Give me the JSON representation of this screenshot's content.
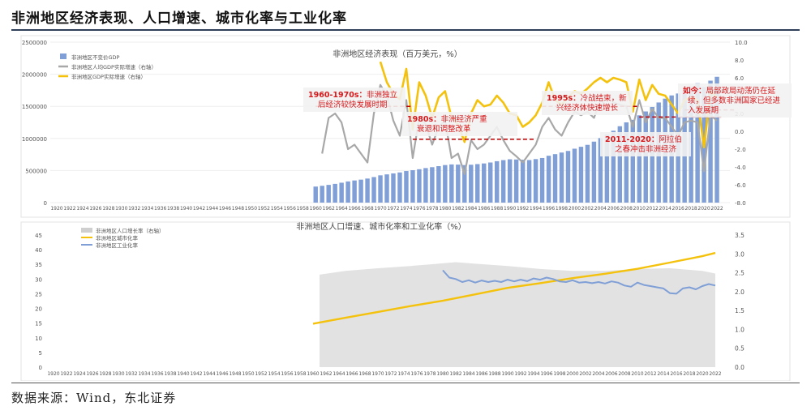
{
  "page": {
    "title": "非洲地区经济表现、人口增速、城市化率与工业化率",
    "source": "数据来源：Wind，东北证券"
  },
  "colors": {
    "gdp_bar": "#7f9fd6",
    "per_capita": "#a8a8a8",
    "gdp_growth": "#f4c20d",
    "pop_area": "#e2e2e2",
    "urban": "#f4c20d",
    "industry": "#7f9fd6",
    "annotation_text": "#d7191c",
    "annotation_box": "#f2f2f2",
    "dashed": "#c00000"
  },
  "chart_data": [
    {
      "type": "bar",
      "title": "非洲地区经济表现（百万美元，%）",
      "x": [
        1960,
        1961,
        1962,
        1963,
        1964,
        1965,
        1966,
        1967,
        1968,
        1969,
        1970,
        1971,
        1972,
        1973,
        1974,
        1975,
        1976,
        1977,
        1978,
        1979,
        1980,
        1981,
        1982,
        1983,
        1984,
        1985,
        1986,
        1987,
        1988,
        1989,
        1990,
        1991,
        1992,
        1993,
        1994,
        1995,
        1996,
        1997,
        1998,
        1999,
        2000,
        2001,
        2002,
        2003,
        2004,
        2005,
        2006,
        2007,
        2008,
        2009,
        2010,
        2011,
        2012,
        2013,
        2014,
        2015,
        2016,
        2017,
        2018,
        2019,
        2020,
        2021,
        2022
      ],
      "x_tick_labels": [
        "1920",
        "1922",
        "1924",
        "1926",
        "1928",
        "1930",
        "1932",
        "1934",
        "1936",
        "1938",
        "1940",
        "1942",
        "1944",
        "1946",
        "1948",
        "1950",
        "1952",
        "1954",
        "1956",
        "1958",
        "1960",
        "1962",
        "1964",
        "1966",
        "1968",
        "1970",
        "1972",
        "1974",
        "1976",
        "1978",
        "1980",
        "1982",
        "1984",
        "1986",
        "1988",
        "1990",
        "1992",
        "1994",
        "1996",
        "1998",
        "2000",
        "2002",
        "2004",
        "2006",
        "2008",
        "2010",
        "2012",
        "2014",
        "2016",
        "2018",
        "2020",
        "2022"
      ],
      "x_range": [
        1919,
        2024
      ],
      "y_left_ticks": [
        "0",
        "500000",
        "1000000",
        "1500000",
        "2000000",
        "2500000"
      ],
      "y_left_range": [
        0,
        2500000
      ],
      "y_right_ticks": [
        "-8.0",
        "-6.0",
        "-4.0",
        "-2.0",
        "0.0",
        "2.0",
        "4.0",
        "6.0",
        "8.0",
        "10.0"
      ],
      "y_right_range": [
        -8,
        10
      ],
      "legend": [
        "非洲地区不变价GDP",
        "非洲地区人均GDP实际增速（右轴）",
        "非洲地区GDP实际增速（右轴）"
      ],
      "legend_placement": "top-left",
      "series": [
        {
          "name": "非洲地区不变价GDP",
          "axis": "left",
          "chart": "bar",
          "values": [
            250000,
            262000,
            276000,
            292000,
            310000,
            330000,
            345000,
            358000,
            375000,
            398000,
            425000,
            440000,
            455000,
            470000,
            492000,
            505000,
            520000,
            538000,
            552000,
            568000,
            585000,
            595000,
            592000,
            585000,
            590000,
            600000,
            610000,
            625000,
            645000,
            662000,
            675000,
            672000,
            668000,
            663000,
            678000,
            695000,
            730000,
            755000,
            780000,
            805000,
            840000,
            870000,
            900000,
            950000,
            1005000,
            1060000,
            1120000,
            1190000,
            1250000,
            1290000,
            1360000,
            1420000,
            1490000,
            1560000,
            1620000,
            1670000,
            1700000,
            1760000,
            1810000,
            1860000,
            1800000,
            1900000,
            1960000
          ]
        },
        {
          "name": "非洲地区人均GDP实际增速（右轴）",
          "axis": "right",
          "chart": "line",
          "x": [
            1961,
            1962,
            1963,
            1964,
            1965,
            1966,
            1967,
            1968,
            1969,
            1970,
            1971,
            1972,
            1973,
            1974,
            1975,
            1976,
            1977,
            1978,
            1979,
            1980,
            1981,
            1982,
            1983,
            1984,
            1985,
            1986,
            1987,
            1988,
            1989,
            1990,
            1991,
            1992,
            1993,
            1994,
            1995,
            1996,
            1997,
            1998,
            1999,
            2000,
            2001,
            2002,
            2003,
            2004,
            2005,
            2006,
            2007,
            2008,
            2009,
            2010,
            2011,
            2012,
            2013,
            2014,
            2015,
            2016,
            2017,
            2018,
            2019,
            2020,
            2021,
            2022
          ],
          "values": [
            -2.5,
            1.5,
            2.0,
            1.0,
            -2.0,
            -1.5,
            -2.5,
            -3.5,
            2.0,
            5.2,
            4.0,
            1.2,
            -0.5,
            3.5,
            -3.0,
            1.5,
            0.8,
            -1.5,
            0.5,
            1.2,
            -3.0,
            -2.5,
            -4.8,
            -1.0,
            -2.0,
            -1.5,
            -0.5,
            0.5,
            -1.0,
            -2.2,
            -2.8,
            -3.5,
            -2.5,
            -1.5,
            0.5,
            1.5,
            0.2,
            -0.5,
            1.0,
            2.2,
            1.8,
            2.2,
            1.5,
            3.5,
            2.8,
            3.2,
            3.0,
            2.8,
            0.5,
            3.5,
            1.0,
            2.5,
            1.5,
            1.5,
            0.5,
            -0.5,
            1.0,
            1.2,
            1.0,
            -4.5,
            1.8,
            1.2
          ]
        },
        {
          "name": "非洲地区GDP实际增速（右轴）",
          "axis": "right",
          "chart": "line",
          "x": [
            1970,
            1971,
            1972,
            1973,
            1974,
            1975,
            1976,
            1977,
            1978,
            1979,
            1980,
            1981,
            1982,
            1983,
            1984,
            1985,
            1986,
            1987,
            1988,
            1989,
            1990,
            1991,
            1992,
            1993,
            1994,
            1995,
            1996,
            1997,
            1998,
            1999,
            2000,
            2001,
            2002,
            2003,
            2004,
            2005,
            2006,
            2007,
            2008,
            2009,
            2010,
            2011,
            2012,
            2013,
            2014,
            2015,
            2016,
            2017,
            2018,
            2019,
            2020,
            2021,
            2022
          ],
          "values": [
            7.8,
            5.5,
            4.2,
            3.6,
            7.0,
            0.2,
            5.5,
            4.0,
            1.5,
            3.8,
            4.5,
            1.5,
            0.8,
            -1.2,
            2.0,
            3.5,
            2.8,
            3.0,
            4.0,
            3.2,
            2.0,
            1.8,
            0.5,
            1.0,
            1.8,
            3.2,
            5.5,
            3.5,
            3.0,
            3.8,
            4.5,
            4.2,
            4.8,
            5.5,
            6.0,
            5.5,
            6.0,
            5.8,
            5.5,
            2.2,
            5.8,
            3.5,
            5.2,
            4.2,
            4.0,
            3.0,
            2.0,
            3.5,
            3.8,
            3.5,
            -1.8,
            4.5,
            3.8
          ]
        }
      ],
      "annotations": [
        {
          "label": "1960-1970s：",
          "text": "非洲独立后经济较快发展时期"
        },
        {
          "label": "1980s：",
          "text": "非洲经济严重衰退和调整改革"
        },
        {
          "label": "1995s：",
          "text": "冷战结束，新兴经济体快速增长"
        },
        {
          "label": "2011-2020：",
          "text": "阿拉伯之春冲击非洲经济"
        },
        {
          "label": "如今：",
          "text": "局部政局动荡仍在延续，但多数非洲国家已经进入发展期"
        }
      ]
    },
    {
      "type": "line",
      "title": "非洲地区人口增速、城市化率和工业化率（%）",
      "x_tick_labels": [
        "1920",
        "1922",
        "1924",
        "1926",
        "1928",
        "1930",
        "1932",
        "1934",
        "1936",
        "1938",
        "1940",
        "1942",
        "1944",
        "1946",
        "1948",
        "1950",
        "1952",
        "1954",
        "1956",
        "1958",
        "1960",
        "1962",
        "1964",
        "1966",
        "1968",
        "1970",
        "1972",
        "1974",
        "1976",
        "1978",
        "1980",
        "1982",
        "1984",
        "1986",
        "1988",
        "1990",
        "1992",
        "1994",
        "1996",
        "1998",
        "2000",
        "2002",
        "2004",
        "2006",
        "2008",
        "2010",
        "2012",
        "2014",
        "2016",
        "2018",
        "2020",
        "2022"
      ],
      "x_range": [
        1919,
        2024
      ],
      "y_left_ticks": [
        "0",
        "5",
        "10",
        "15",
        "20",
        "25",
        "30",
        "35",
        "40",
        "45"
      ],
      "y_left_range": [
        0,
        45
      ],
      "y_right_ticks": [
        "0.0",
        "0.5",
        "1.0",
        "1.5",
        "2.0",
        "2.5",
        "3.0",
        "3.5"
      ],
      "y_right_range": [
        0,
        3.5
      ],
      "legend": [
        "非洲地区人口增长率（右轴）",
        "非洲地区城市化率",
        "非洲地区工业化率"
      ],
      "legend_placement": "top-left",
      "series": [
        {
          "name": "非洲地区人口增长率（右轴）",
          "axis": "right",
          "chart": "area",
          "x": [
            1961,
            1965,
            1970,
            1975,
            1978,
            1980,
            1982,
            1985,
            1990,
            1995,
            2000,
            2005,
            2010,
            2015,
            2020,
            2022
          ],
          "values": [
            2.45,
            2.55,
            2.62,
            2.68,
            2.72,
            2.75,
            2.78,
            2.74,
            2.68,
            2.6,
            2.55,
            2.55,
            2.6,
            2.62,
            2.55,
            2.48
          ]
        },
        {
          "name": "非洲地区城市化率",
          "axis": "left",
          "chart": "line",
          "x": [
            1960,
            1965,
            1970,
            1975,
            1980,
            1985,
            1990,
            1995,
            2000,
            2005,
            2010,
            2015,
            2020,
            2022
          ],
          "values": [
            14.8,
            16.8,
            18.8,
            20.8,
            22.6,
            24.8,
            27.0,
            28.6,
            30.3,
            31.8,
            33.5,
            35.6,
            37.8,
            38.9
          ]
        },
        {
          "name": "非洲地区工业化率",
          "axis": "left",
          "chart": "line",
          "x": [
            1980,
            1981,
            1982,
            1983,
            1984,
            1985,
            1986,
            1987,
            1988,
            1989,
            1990,
            1991,
            1992,
            1993,
            1994,
            1995,
            1996,
            1997,
            1998,
            1999,
            2000,
            2001,
            2002,
            2003,
            2004,
            2005,
            2006,
            2007,
            2008,
            2009,
            2010,
            2011,
            2012,
            2013,
            2014,
            2015,
            2016,
            2017,
            2018,
            2019,
            2020,
            2021,
            2022
          ],
          "values": [
            33.0,
            30.5,
            30.0,
            29.0,
            29.6,
            28.8,
            29.5,
            29.0,
            29.4,
            29.0,
            29.8,
            29.2,
            29.8,
            29.3,
            30.2,
            29.8,
            30.5,
            30.0,
            29.2,
            29.0,
            29.6,
            28.8,
            29.0,
            28.6,
            29.0,
            28.5,
            29.2,
            28.8,
            27.8,
            27.4,
            28.8,
            28.0,
            27.6,
            27.2,
            26.8,
            25.2,
            25.0,
            26.8,
            27.2,
            26.5,
            27.6,
            28.3,
            27.8
          ]
        }
      ]
    }
  ]
}
